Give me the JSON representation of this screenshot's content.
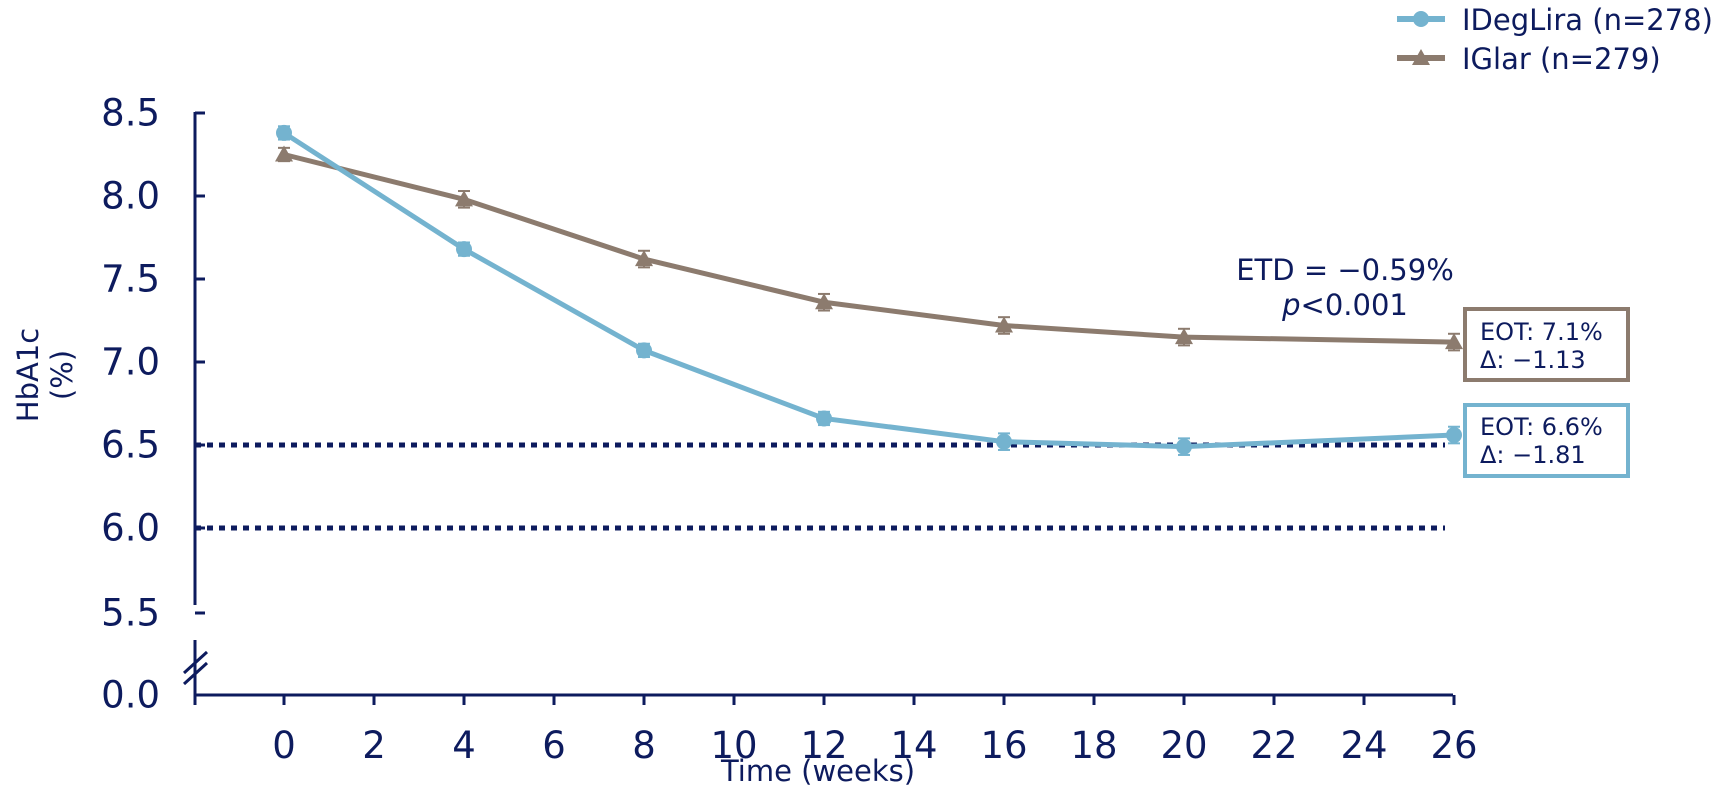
{
  "chart_data": {
    "type": "line",
    "xlabel": "Time (weeks)",
    "ylabel_line1": "HbA1c",
    "ylabel_line2": "(%)",
    "x_ticks": [
      "0",
      "2",
      "4",
      "6",
      "8",
      "10",
      "12",
      "14",
      "16",
      "18",
      "20",
      "22",
      "24",
      "26"
    ],
    "y_ticks": [
      "8.5",
      "8.0",
      "7.5",
      "7.0",
      "6.5",
      "6.0",
      "5.5",
      "0.0"
    ],
    "xlim": [
      -2,
      26
    ],
    "ylim_upper": [
      5.5,
      8.5
    ],
    "axis_break": "between 5.5 and 0.0",
    "reference_lines": [
      6.5,
      6.0
    ],
    "x": [
      0,
      4,
      8,
      12,
      16,
      20,
      26
    ],
    "series": [
      {
        "name": "IDegLira (n=278)",
        "color": "#74b3cf",
        "marker": "circle",
        "values": [
          8.38,
          7.68,
          7.07,
          6.66,
          6.52,
          6.49,
          6.56
        ],
        "error": [
          0.04,
          0.04,
          0.04,
          0.04,
          0.05,
          0.05,
          0.05
        ]
      },
      {
        "name": "IGlar (n=279)",
        "color": "#8c7b6e",
        "marker": "triangle",
        "values": [
          8.25,
          7.98,
          7.62,
          7.36,
          7.22,
          7.15,
          7.12
        ],
        "error": [
          0.04,
          0.05,
          0.05,
          0.05,
          0.05,
          0.05,
          0.05
        ]
      }
    ],
    "annotation": {
      "etd": "ETD = −0.59%",
      "p_italic": "p",
      "p_rest": "<0.001"
    },
    "end_boxes": [
      {
        "series": "IGlar (n=279)",
        "line1": "EOT: 7.1%",
        "line2": "Δ: −1.13",
        "border_color": "#8c7b6e"
      },
      {
        "series": "IDegLira (n=278)",
        "line1": "EOT: 6.6%",
        "line2": "Δ: −1.81",
        "border_color": "#74b3cf"
      }
    ],
    "legend_position": "top-right",
    "grid": false,
    "axis_color": "#0d1b5e"
  }
}
